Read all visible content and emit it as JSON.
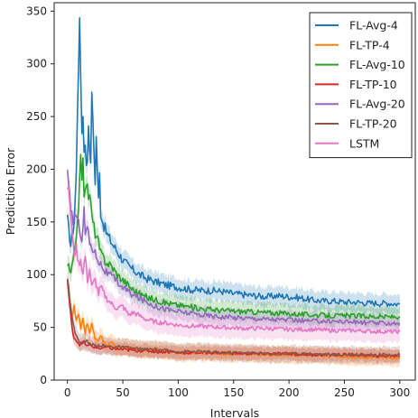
{
  "chart_data": {
    "type": "line",
    "xlabel": "Intervals",
    "ylabel": "Prediction Error",
    "xlim": [
      -12,
      314
    ],
    "ylim": [
      0,
      358
    ],
    "xticks": [
      0,
      50,
      100,
      150,
      200,
      250,
      300
    ],
    "yticks": [
      0,
      50,
      100,
      150,
      200,
      250,
      300,
      350
    ],
    "grid": false,
    "legend_position": "top-right",
    "series": [
      {
        "name": "FL-Avg-4",
        "color": "#1f77b4",
        "band": 9,
        "points": [
          [
            0,
            152
          ],
          [
            3,
            128
          ],
          [
            6,
            150
          ],
          [
            8,
            195
          ],
          [
            9,
            260
          ],
          [
            10,
            305
          ],
          [
            11,
            332
          ],
          [
            12,
            290
          ],
          [
            13,
            240
          ],
          [
            14,
            250
          ],
          [
            15,
            220
          ],
          [
            16,
            230
          ],
          [
            17,
            200
          ],
          [
            18,
            210
          ],
          [
            19,
            245
          ],
          [
            20,
            225
          ],
          [
            21,
            200
          ],
          [
            22,
            280
          ],
          [
            23,
            240
          ],
          [
            24,
            215
          ],
          [
            25,
            190
          ],
          [
            26,
            230
          ],
          [
            27,
            200
          ],
          [
            28,
            170
          ],
          [
            29,
            195
          ],
          [
            30,
            160
          ],
          [
            32,
            150
          ],
          [
            35,
            140
          ],
          [
            40,
            130
          ],
          [
            45,
            122
          ],
          [
            50,
            114
          ],
          [
            55,
            108
          ],
          [
            60,
            104
          ],
          [
            65,
            100
          ],
          [
            70,
            97
          ],
          [
            75,
            95
          ],
          [
            80,
            93
          ],
          [
            90,
            90
          ],
          [
            100,
            88
          ],
          [
            110,
            86
          ],
          [
            120,
            85
          ],
          [
            130,
            85
          ],
          [
            140,
            84
          ],
          [
            150,
            82
          ],
          [
            160,
            81
          ],
          [
            170,
            80
          ],
          [
            180,
            79
          ],
          [
            190,
            80
          ],
          [
            200,
            79
          ],
          [
            210,
            78
          ],
          [
            220,
            76
          ],
          [
            230,
            75
          ],
          [
            240,
            75
          ],
          [
            250,
            74
          ],
          [
            260,
            74
          ],
          [
            270,
            73
          ],
          [
            280,
            73
          ],
          [
            290,
            73
          ],
          [
            300,
            72
          ]
        ]
      },
      {
        "name": "FL-TP-4",
        "color": "#ff7f0e",
        "band": 8,
        "points": [
          [
            0,
            95
          ],
          [
            2,
            75
          ],
          [
            4,
            58
          ],
          [
            6,
            70
          ],
          [
            8,
            55
          ],
          [
            10,
            62
          ],
          [
            12,
            48
          ],
          [
            14,
            60
          ],
          [
            16,
            45
          ],
          [
            18,
            55
          ],
          [
            20,
            44
          ],
          [
            22,
            52
          ],
          [
            25,
            40
          ],
          [
            28,
            38
          ],
          [
            30,
            42
          ],
          [
            35,
            32
          ],
          [
            40,
            35
          ],
          [
            45,
            30
          ],
          [
            50,
            31
          ],
          [
            60,
            30
          ],
          [
            70,
            29
          ],
          [
            80,
            29
          ],
          [
            90,
            27
          ],
          [
            100,
            26
          ],
          [
            120,
            26
          ],
          [
            140,
            25
          ],
          [
            160,
            25
          ],
          [
            180,
            24
          ],
          [
            200,
            24
          ],
          [
            220,
            23
          ],
          [
            240,
            23
          ],
          [
            260,
            22
          ],
          [
            280,
            22
          ],
          [
            300,
            21
          ]
        ]
      },
      {
        "name": "FL-Avg-10",
        "color": "#2ca02c",
        "band": 9,
        "points": [
          [
            0,
            110
          ],
          [
            3,
            100
          ],
          [
            6,
            118
          ],
          [
            9,
            150
          ],
          [
            11,
            185
          ],
          [
            12,
            210
          ],
          [
            13,
            195
          ],
          [
            14,
            205
          ],
          [
            15,
            180
          ],
          [
            17,
            190
          ],
          [
            19,
            170
          ],
          [
            20,
            180
          ],
          [
            22,
            155
          ],
          [
            25,
            140
          ],
          [
            28,
            130
          ],
          [
            30,
            120
          ],
          [
            35,
            112
          ],
          [
            40,
            108
          ],
          [
            45,
            100
          ],
          [
            50,
            95
          ],
          [
            60,
            85
          ],
          [
            70,
            79
          ],
          [
            80,
            76
          ],
          [
            90,
            73
          ],
          [
            100,
            71
          ],
          [
            120,
            68
          ],
          [
            140,
            66
          ],
          [
            160,
            65
          ],
          [
            180,
            64
          ],
          [
            200,
            63
          ],
          [
            220,
            62
          ],
          [
            240,
            61
          ],
          [
            260,
            61
          ],
          [
            280,
            60
          ],
          [
            300,
            60
          ]
        ]
      },
      {
        "name": "FL-TP-10",
        "color": "#d62728",
        "band": 6,
        "points": [
          [
            0,
            95
          ],
          [
            2,
            70
          ],
          [
            4,
            50
          ],
          [
            6,
            40
          ],
          [
            8,
            38
          ],
          [
            10,
            35
          ],
          [
            12,
            33
          ],
          [
            15,
            36
          ],
          [
            18,
            32
          ],
          [
            20,
            33
          ],
          [
            25,
            31
          ],
          [
            30,
            30
          ],
          [
            35,
            31
          ],
          [
            40,
            30
          ],
          [
            50,
            29
          ],
          [
            60,
            28
          ],
          [
            70,
            28
          ],
          [
            80,
            27
          ],
          [
            90,
            27
          ],
          [
            100,
            26
          ],
          [
            120,
            26
          ],
          [
            140,
            26
          ],
          [
            160,
            25
          ],
          [
            180,
            25
          ],
          [
            200,
            25
          ],
          [
            220,
            24
          ],
          [
            240,
            24
          ],
          [
            260,
            24
          ],
          [
            280,
            23
          ],
          [
            300,
            23
          ]
        ]
      },
      {
        "name": "FL-Avg-20",
        "color": "#9467bd",
        "band": 8,
        "points": [
          [
            0,
            195
          ],
          [
            1,
            180
          ],
          [
            3,
            165
          ],
          [
            5,
            150
          ],
          [
            7,
            160
          ],
          [
            9,
            150
          ],
          [
            11,
            145
          ],
          [
            13,
            135
          ],
          [
            15,
            160
          ],
          [
            16,
            140
          ],
          [
            18,
            145
          ],
          [
            20,
            130
          ],
          [
            23,
            125
          ],
          [
            26,
            118
          ],
          [
            30,
            110
          ],
          [
            35,
            102
          ],
          [
            40,
            98
          ],
          [
            45,
            93
          ],
          [
            50,
            88
          ],
          [
            60,
            80
          ],
          [
            70,
            75
          ],
          [
            80,
            70
          ],
          [
            90,
            67
          ],
          [
            100,
            65
          ],
          [
            120,
            62
          ],
          [
            140,
            60
          ],
          [
            160,
            59
          ],
          [
            180,
            58
          ],
          [
            200,
            57
          ],
          [
            220,
            56
          ],
          [
            240,
            56
          ],
          [
            260,
            55
          ],
          [
            280,
            54
          ],
          [
            300,
            54
          ]
        ]
      },
      {
        "name": "FL-TP-20",
        "color": "#8c564b",
        "band": 8,
        "points": [
          [
            0,
            100
          ],
          [
            2,
            80
          ],
          [
            4,
            60
          ],
          [
            6,
            48
          ],
          [
            8,
            42
          ],
          [
            10,
            38
          ],
          [
            12,
            36
          ],
          [
            15,
            35
          ],
          [
            18,
            38
          ],
          [
            20,
            34
          ],
          [
            25,
            33
          ],
          [
            30,
            33
          ],
          [
            35,
            32
          ],
          [
            40,
            32
          ],
          [
            50,
            31
          ],
          [
            60,
            30
          ],
          [
            70,
            29
          ],
          [
            80,
            29
          ],
          [
            90,
            28
          ],
          [
            100,
            27
          ],
          [
            120,
            27
          ],
          [
            140,
            26
          ],
          [
            160,
            26
          ],
          [
            180,
            25
          ],
          [
            200,
            25
          ],
          [
            220,
            25
          ],
          [
            240,
            24
          ],
          [
            260,
            24
          ],
          [
            280,
            24
          ],
          [
            300,
            24
          ]
        ]
      },
      {
        "name": "LSTM",
        "color": "#e377c2",
        "band": 10,
        "points": [
          [
            0,
            185
          ],
          [
            2,
            170
          ],
          [
            4,
            140
          ],
          [
            6,
            120
          ],
          [
            8,
            125
          ],
          [
            10,
            110
          ],
          [
            12,
            115
          ],
          [
            14,
            100
          ],
          [
            16,
            118
          ],
          [
            18,
            95
          ],
          [
            20,
            105
          ],
          [
            22,
            88
          ],
          [
            25,
            95
          ],
          [
            28,
            82
          ],
          [
            30,
            88
          ],
          [
            35,
            78
          ],
          [
            40,
            72
          ],
          [
            45,
            68
          ],
          [
            50,
            70
          ],
          [
            55,
            62
          ],
          [
            60,
            64
          ],
          [
            70,
            58
          ],
          [
            80,
            55
          ],
          [
            90,
            54
          ],
          [
            100,
            52
          ],
          [
            120,
            51
          ],
          [
            140,
            50
          ],
          [
            160,
            49
          ],
          [
            180,
            49
          ],
          [
            200,
            48
          ],
          [
            220,
            48
          ],
          [
            240,
            47
          ],
          [
            260,
            47
          ],
          [
            280,
            46
          ],
          [
            300,
            46
          ]
        ]
      }
    ]
  }
}
